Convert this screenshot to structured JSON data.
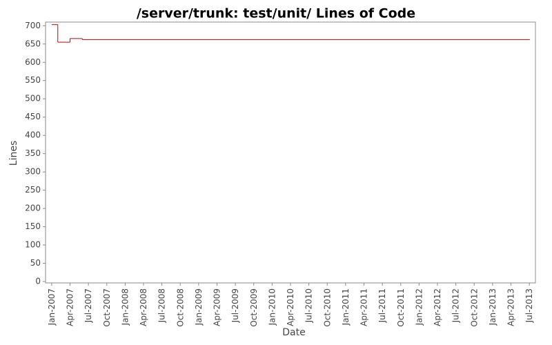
{
  "chart_data": {
    "type": "step",
    "title": "/server/trunk: test/unit/ Lines of Code",
    "x_label": "Date",
    "y_label": "Lines",
    "series": [
      {
        "name": "Lines",
        "color": "#c00000",
        "x": [
          "2007-01",
          "2007-02",
          "2007-04",
          "2007-06",
          "2013-07"
        ],
        "values": [
          703,
          655,
          665,
          662,
          662
        ]
      }
    ],
    "xlim": [
      "2006-12",
      "2013-08"
    ],
    "xticks": [
      {
        "value": "2007-01",
        "label": "Jan-2007"
      },
      {
        "value": "2007-04",
        "label": "Apr-2007"
      },
      {
        "value": "2007-07",
        "label": "Jul-2007"
      },
      {
        "value": "2007-10",
        "label": "Oct-2007"
      },
      {
        "value": "2008-01",
        "label": "Jan-2008"
      },
      {
        "value": "2008-04",
        "label": "Apr-2008"
      },
      {
        "value": "2008-07",
        "label": "Jul-2008"
      },
      {
        "value": "2008-10",
        "label": "Oct-2008"
      },
      {
        "value": "2009-01",
        "label": "Jan-2009"
      },
      {
        "value": "2009-04",
        "label": "Apr-2009"
      },
      {
        "value": "2009-07",
        "label": "Jul-2009"
      },
      {
        "value": "2009-10",
        "label": "Oct-2009"
      },
      {
        "value": "2010-01",
        "label": "Jan-2010"
      },
      {
        "value": "2010-04",
        "label": "Apr-2010"
      },
      {
        "value": "2010-07",
        "label": "Jul-2010"
      },
      {
        "value": "2010-10",
        "label": "Oct-2010"
      },
      {
        "value": "2011-01",
        "label": "Jan-2011"
      },
      {
        "value": "2011-04",
        "label": "Apr-2011"
      },
      {
        "value": "2011-07",
        "label": "Jul-2011"
      },
      {
        "value": "2011-10",
        "label": "Oct-2011"
      },
      {
        "value": "2012-01",
        "label": "Jan-2012"
      },
      {
        "value": "2012-04",
        "label": "Apr-2012"
      },
      {
        "value": "2012-07",
        "label": "Jul-2012"
      },
      {
        "value": "2012-10",
        "label": "Oct-2012"
      },
      {
        "value": "2013-01",
        "label": "Jan-2013"
      },
      {
        "value": "2013-04",
        "label": "Apr-2013"
      },
      {
        "value": "2013-07",
        "label": "Jul-2013"
      }
    ],
    "ylim": [
      0,
      710
    ],
    "yticks": [
      0,
      50,
      100,
      150,
      200,
      250,
      300,
      350,
      400,
      450,
      500,
      550,
      600,
      650,
      700
    ]
  }
}
